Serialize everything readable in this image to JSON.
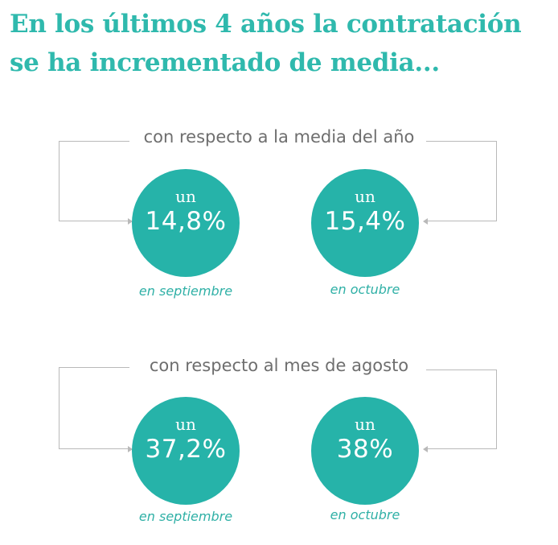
{
  "title": {
    "line1": "En los últimos 4 años la contratación",
    "line2": "se ha incrementado de media..."
  },
  "sections": [
    {
      "label": "con respecto a la media del año",
      "items": [
        {
          "prefix": "un",
          "value": "14,8%",
          "caption": "en septiembre"
        },
        {
          "prefix": "un",
          "value": "15,4%",
          "caption": "en octubre"
        }
      ]
    },
    {
      "label": "con respecto al mes de agosto",
      "items": [
        {
          "prefix": "un",
          "value": "37,2%",
          "caption": "en septiembre"
        },
        {
          "prefix": "un",
          "value": "38%",
          "caption": "en octubre"
        }
      ]
    }
  ],
  "colors": {
    "accent": "#2fb9ad",
    "circle": "#26b3a9",
    "label_text": "#6e6e6e",
    "bracket": "#b9b9b9"
  }
}
